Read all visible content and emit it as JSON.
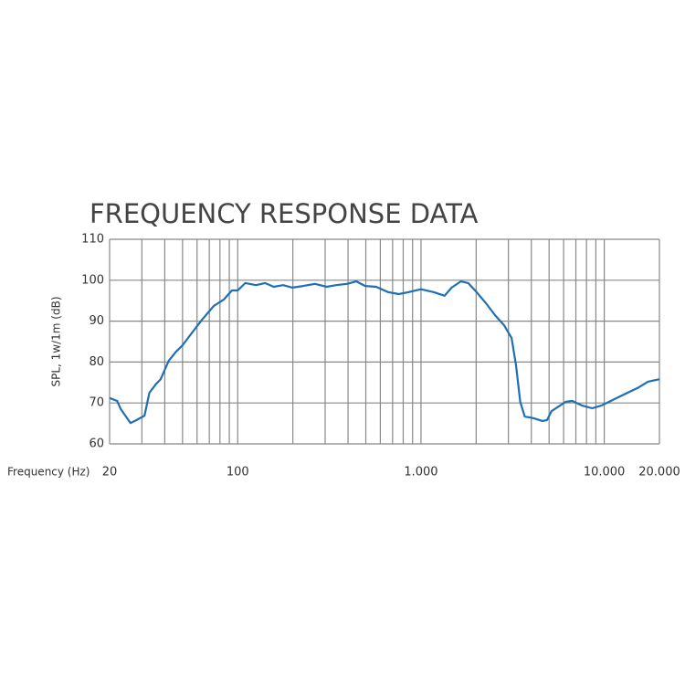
{
  "chart_data": {
    "type": "line",
    "title": "FREQUENCY RESPONSE DATA",
    "xlabel": "Frequency (Hz)",
    "ylabel": "SPL, 1w/1m (dB)",
    "xscale": "log",
    "grid": true,
    "xlim": [
      20,
      20000
    ],
    "ylim": [
      60,
      110
    ],
    "xticks": [
      20,
      100,
      {
        "value": 1000,
        "label": "1.000"
      },
      {
        "value": 10000,
        "label": "10.000"
      },
      {
        "value": 20000,
        "label": "20.000"
      }
    ],
    "x_minor_ticks": [
      30,
      40,
      50,
      60,
      70,
      80,
      90,
      200,
      300,
      400,
      500,
      600,
      700,
      800,
      900,
      2000,
      3000,
      4000,
      5000,
      6000,
      7000,
      8000,
      9000
    ],
    "yticks": [
      60,
      70,
      80,
      90,
      100,
      110
    ],
    "series": [
      {
        "name": "SPL",
        "color": "#1f6fb5",
        "x": [
          20,
          22,
          23,
          26,
          28,
          31,
          33,
          36,
          38,
          42,
          46,
          50,
          56,
          64,
          74,
          84,
          93,
          100,
          110,
          126,
          141,
          157,
          177,
          199,
          228,
          264,
          306,
          344,
          394,
          444,
          496,
          569,
          660,
          757,
          857,
          1000,
          1170,
          1345,
          1470,
          1650,
          1810,
          2010,
          2260,
          2530,
          2840,
          3120,
          3300,
          3480,
          3680,
          4100,
          4600,
          4870,
          5150,
          6160,
          6700,
          7540,
          8600,
          9690,
          12200,
          15400,
          17300,
          20000
        ],
        "values": [
          71.2,
          70.5,
          68.5,
          65.1,
          65.8,
          66.9,
          72.5,
          74.7,
          75.8,
          80.3,
          82.5,
          84.1,
          87.0,
          90.4,
          93.7,
          95.3,
          97.5,
          97.5,
          99.3,
          98.8,
          99.3,
          98.4,
          98.8,
          98.2,
          98.6,
          99.1,
          98.4,
          98.8,
          99.1,
          99.7,
          98.6,
          98.4,
          97.1,
          96.6,
          97.1,
          97.8,
          97.1,
          96.2,
          98.2,
          99.7,
          99.3,
          97.1,
          94.4,
          91.5,
          89.0,
          85.9,
          79.2,
          70.3,
          66.7,
          66.3,
          65.6,
          65.8,
          68.0,
          70.3,
          70.5,
          69.4,
          68.7,
          69.4,
          71.6,
          73.8,
          75.2,
          75.8
        ]
      }
    ]
  }
}
